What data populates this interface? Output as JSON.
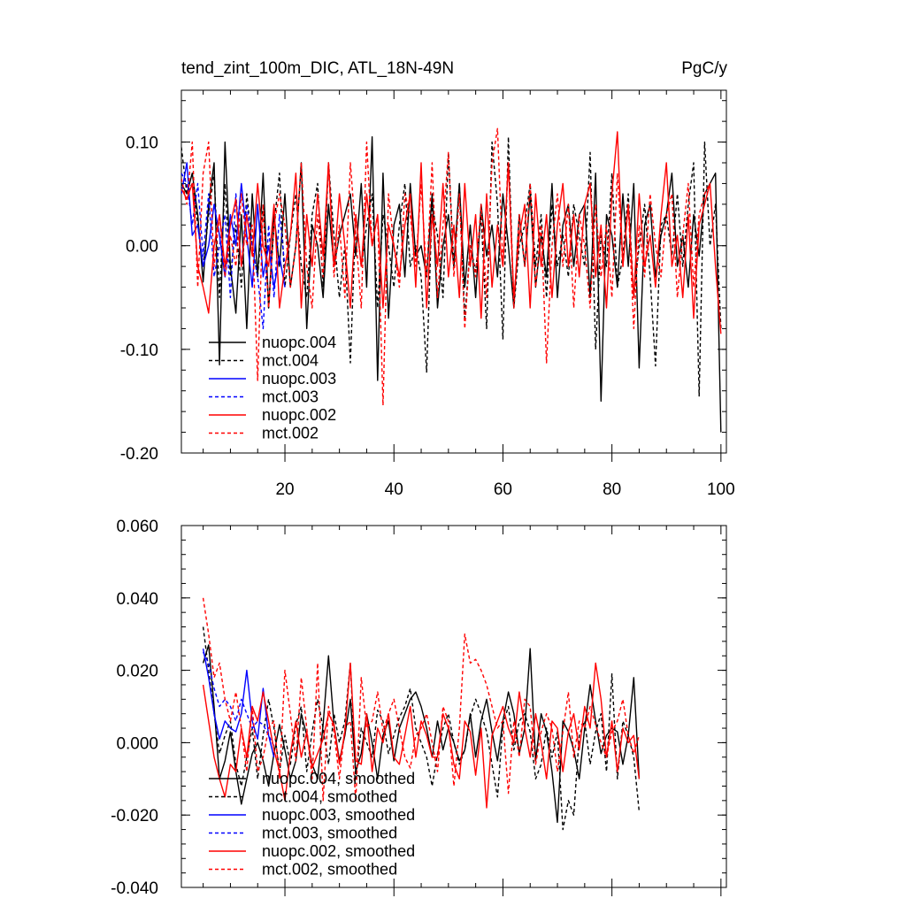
{
  "figure": {
    "left_title": "tend_zint_100m_DIC, ATL_18N-49N",
    "right_title": "PgC/y"
  },
  "chart_data": [
    {
      "type": "line",
      "name": "annual",
      "xlim": [
        1,
        101
      ],
      "ylim": [
        -0.2,
        0.15
      ],
      "xticks": [
        20,
        40,
        60,
        80,
        100
      ],
      "xtick_labels": [
        "20",
        "40",
        "60",
        "80",
        "100"
      ],
      "yticks": [
        -0.2,
        -0.1,
        0.0,
        0.1
      ],
      "ytick_labels": [
        "-0.20",
        "-0.10",
        "0.00",
        "0.10"
      ],
      "legend_position": "bottom-left",
      "series": [
        {
          "name": "nuopc.004",
          "color": "#000000",
          "dash": "solid",
          "values": [
            0.06,
            0.05,
            0.07,
            0.03,
            -0.035,
            0.04,
            0.08,
            -0.115,
            0.1,
            -0.02,
            -0.065,
            0.03,
            -0.08,
            0.05,
            -0.03,
            0.07,
            -0.06,
            0.03,
            -0.02,
            0.05,
            -0.04,
            0.0,
            0.08,
            -0.08,
            0.02,
            0.0,
            -0.05,
            0.04,
            -0.02,
            0.01,
            0.03,
            0.05,
            -0.01,
            0.06,
            -0.04,
            0.105,
            -0.13,
            0.07,
            -0.07,
            0.02,
            0.04,
            -0.03,
            0.06,
            -0.01,
            0.0,
            -0.03,
            0.05,
            -0.06,
            0.0,
            0.03,
            -0.02,
            0.06,
            -0.04,
            0.02,
            -0.05,
            0.04,
            -0.01,
            0.02,
            -0.03,
            0.05,
            0.0,
            -0.06,
            0.03,
            -0.02,
            0.05,
            -0.04,
            0.01,
            -0.03,
            0.06,
            -0.05,
            0.02,
            0.04,
            -0.02,
            0.03,
            0.04,
            -0.05,
            0.07,
            -0.15,
            0.03,
            0.01,
            -0.04,
            0.05,
            -0.02,
            0.06,
            -0.118,
            0.02,
            0.04,
            -0.03,
            0.01,
            0.03,
            0.07,
            -0.02,
            0.01,
            -0.04,
            0.03,
            -0.01,
            0.05,
            0.06,
            0.07,
            -0.18
          ]
        },
        {
          "name": "mct.004",
          "color": "#000000",
          "dash": "dashed",
          "values": [
            0.095,
            0.05,
            0.06,
            0.02,
            -0.02,
            0.03,
            0.07,
            -0.05,
            0.06,
            -0.03,
            0.02,
            -0.04,
            0.05,
            0.0,
            -0.03,
            0.04,
            -0.06,
            0.02,
            0.07,
            -0.04,
            0.01,
            0.05,
            -0.02,
            -0.05,
            0.03,
            0.06,
            -0.04,
            0.08,
            0.01,
            -0.05,
            0.0,
            -0.113,
            0.03,
            -0.02,
            0.02,
            0.05,
            -0.06,
            0.03,
            0.0,
            -0.04,
            0.02,
            0.06,
            -0.02,
            0.0,
            -0.03,
            -0.122,
            0.04,
            0.01,
            -0.05,
            0.09,
            -0.02,
            0.06,
            -0.07,
            0.0,
            -0.025,
            0.03,
            -0.08,
            0.1,
            0.04,
            -0.09,
            0.105,
            -0.06,
            0.0,
            0.02,
            0.06,
            -0.02,
            0.03,
            -0.05,
            0.04,
            -0.02,
            0.01,
            -0.03,
            0.04,
            0.01,
            -0.02,
            0.09,
            -0.1,
            0.01,
            -0.02,
            0.07,
            -0.04,
            -0.01,
            0.05,
            -0.05,
            0.0,
            0.04,
            -0.03,
            -0.116,
            0.02,
            0.03,
            -0.01,
            0.05,
            -0.02,
            0.04,
            0.08,
            -0.145,
            0.1,
            0.0,
            0.04,
            -0.08
          ]
        },
        {
          "name": "nuopc.003",
          "color": "#0000ff",
          "dash": "solid",
          "values": [
            0.05,
            0.08,
            0.01,
            0.02,
            -0.02,
            0.0,
            0.04,
            0.01,
            -0.03,
            0.03,
            0.0,
            0.06,
            0.01,
            -0.04,
            0.04,
            -0.03,
            0.0,
            -0.04,
            -0.01,
            -0.04
          ]
        },
        {
          "name": "mct.003",
          "color": "#0000ff",
          "dash": "dashed",
          "values": [
            0.07,
            0.06,
            0.02,
            0.06,
            -0.01,
            0.05,
            -0.03,
            0.0,
            0.03,
            -0.05,
            0.05,
            -0.02,
            0.04,
            0.0,
            -0.03,
            -0.08,
            0.02,
            -0.05,
            0.03,
            -0.02
          ]
        },
        {
          "name": "nuopc.002",
          "color": "#ff0000",
          "dash": "solid",
          "values": [
            0.055,
            0.045,
            0.06,
            -0.02,
            -0.04,
            -0.065,
            0.0,
            0.03,
            -0.02,
            0.02,
            0.045,
            -0.02,
            0.03,
            -0.01,
            0.06,
            0.0,
            -0.02,
            0.04,
            -0.06,
            -0.02,
            0.01,
            0.07,
            -0.06,
            0.03,
            -0.02,
            0.05,
            -0.01,
            0.08,
            -0.02,
            0.05,
            0.0,
            -0.06,
            0.03,
            -0.02,
            0.05,
            0.0,
            0.03,
            -0.06,
            0.02,
            0.0,
            -0.03,
            0.02,
            0.05,
            -0.04,
            0.08,
            -0.06,
            0.03,
            -0.02,
            0.06,
            -0.03,
            0.02,
            -0.05,
            0.06,
            -0.02,
            0.03,
            -0.07,
            0.05,
            -0.04,
            0.02,
            -0.02,
            0.08,
            -0.05,
            0.01,
            0.04,
            -0.06,
            0.05,
            -0.02,
            0.03,
            -0.05,
            0.02,
            0.06,
            -0.02,
            0.03,
            -0.03,
            0.04,
            0.06,
            -0.03,
            0.02,
            -0.06,
            0.05,
            0.11,
            -0.02,
            0.04,
            -0.05,
            0.05,
            -0.02,
            0.01,
            -0.04,
            0.03,
            0.08,
            -0.02,
            0.01,
            -0.05,
            0.03,
            -0.07,
            0.02,
            0.04,
            0.06,
            -0.02,
            -0.085
          ]
        },
        {
          "name": "mct.002",
          "color": "#ff0000",
          "dash": "dashed",
          "values": [
            0.065,
            0.04,
            0.1,
            -0.04,
            0.07,
            0.1,
            -0.02,
            0.03,
            -0.03,
            0.01,
            -0.02,
            0.05,
            0.0,
            0.02,
            -0.13,
            0.04,
            -0.06,
            0.02,
            0.05,
            0.02,
            -0.04,
            0.0,
            0.08,
            -0.02,
            -0.06,
            0.03,
            -0.03,
            0.08,
            -0.03,
            0.02,
            -0.05,
            0.08,
            0.01,
            -0.06,
            0.1,
            0.0,
            0.03,
            -0.154,
            0.05,
            0.0,
            -0.04,
            0.05,
            0.03,
            -0.02,
            0.06,
            -0.03,
            0.08,
            -0.05,
            0.02,
            0.09,
            -0.03,
            0.05,
            -0.08,
            0.0,
            -0.03,
            0.04,
            -0.05,
            0.08,
            0.113,
            -0.02,
            0.08,
            -0.06,
            0.03,
            -0.02,
            0.06,
            -0.04,
            0.02,
            -0.113,
            0.0,
            0.05,
            -0.02,
            0.04,
            -0.06,
            0.03,
            0.0,
            -0.06,
            0.04,
            -0.03,
            0.02,
            -0.05,
            0.07,
            -0.02,
            0.04,
            -0.08,
            0.02,
            -0.03,
            0.05,
            0.0,
            -0.03,
            0.03,
            0.05,
            -0.05,
            0.01,
            0.06,
            -0.04,
            0.03,
            0.05,
            0.06
          ]
        }
      ]
    },
    {
      "type": "line",
      "name": "smoothed",
      "xlim": [
        1,
        101
      ],
      "ylim": [
        -0.04,
        0.06
      ],
      "xticks": [
        20,
        40,
        60,
        80,
        100
      ],
      "xtick_labels": [
        "",
        "",
        "",
        "",
        ""
      ],
      "yticks": [
        -0.04,
        -0.02,
        0.0,
        0.02,
        0.04,
        0.06
      ],
      "ytick_labels": [
        "-0.040",
        "-0.020",
        "0.000",
        "0.020",
        "0.040",
        "0.060"
      ],
      "legend_position": "bottom-left",
      "series": [
        {
          "name": "nuopc.004, smoothed",
          "color": "#000000",
          "dash": "solid",
          "x_start": 5,
          "values": [
            0.022,
            0.027,
            0.01,
            -0.01,
            -0.005,
            0.003,
            -0.008,
            -0.017,
            -0.01,
            -0.003,
            0.0,
            -0.005,
            -0.012,
            -0.003,
            0.005,
            -0.002,
            -0.01,
            -0.005,
            0.008,
            0.002,
            -0.006,
            -0.01,
            0.005,
            0.024,
            0.005,
            -0.005,
            0.002,
            0.012,
            -0.008,
            -0.003,
            0.008,
            0.0,
            -0.01,
            0.002,
            0.006,
            -0.005,
            0.004,
            0.008,
            0.012,
            0.014,
            0.01,
            0.004,
            -0.004,
            0.006,
            -0.002,
            0.004,
            0.0,
            -0.005,
            -0.002,
            0.008,
            -0.004,
            0.006,
            0.012,
            0.003,
            -0.005,
            0.006,
            0.014,
            0.008,
            -0.003,
            0.004,
            0.026,
            -0.005,
            0.008,
            0.003,
            -0.008,
            -0.022,
            0.006,
            0.003,
            -0.002,
            -0.01,
            0.004,
            0.016,
            0.006,
            -0.003,
            0.002,
            0.004,
            0.003,
            -0.006,
            0.002,
            0.018,
            -0.01
          ]
        },
        {
          "name": "mct.004, smoothed",
          "color": "#000000",
          "dash": "dashed",
          "x_start": 5,
          "values": [
            0.032,
            0.02,
            0.008,
            -0.003,
            0.002,
            0.006,
            -0.006,
            -0.012,
            -0.004,
            0.004,
            -0.01,
            0.002,
            0.012,
            0.004,
            -0.008,
            0.002,
            -0.006,
            0.005,
            0.01,
            -0.008,
            0.003,
            0.012,
            0.004,
            -0.006,
            0.008,
            0.0,
            0.006,
            0.022,
            -0.01,
            0.004,
            0.0,
            -0.004,
            0.009,
            0.006,
            -0.003,
            0.002,
            0.007,
            0.01,
            0.015,
            0.004,
            0.0,
            -0.004,
            -0.012,
            -0.003,
            0.004,
            0.008,
            0.0,
            -0.006,
            -0.002,
            0.007,
            0.012,
            0.008,
            0.003,
            -0.006,
            -0.015,
            0.005,
            0.01,
            -0.002,
            0.006,
            0.008,
            0.003,
            -0.01,
            -0.006,
            0.004,
            -0.004,
            0.003,
            -0.024,
            -0.016,
            -0.02,
            0.002,
            0.006,
            -0.006,
            0.003,
            0.008,
            -0.008,
            0.019,
            -0.01,
            0.006,
            0.002,
            -0.004,
            -0.019
          ]
        },
        {
          "name": "nuopc.003, smoothed",
          "color": "#0000ff",
          "dash": "solid",
          "x_start": 5,
          "values": [
            0.026,
            0.018,
            0.008,
            0.001,
            0.006,
            0.004,
            0.003,
            0.008,
            0.02,
            0.006,
            0.001,
            0.015,
            0.002,
            -0.004
          ]
        },
        {
          "name": "mct.003, smoothed",
          "color": "#0000ff",
          "dash": "dashed",
          "x_start": 5,
          "values": [
            0.025,
            0.022,
            0.015,
            0.01,
            0.012,
            0.01,
            0.006,
            0.012,
            0.008,
            0.004,
            0.006,
            0.005,
            0.002,
            -0.001
          ]
        },
        {
          "name": "nuopc.002, smoothed",
          "color": "#ff0000",
          "dash": "solid",
          "x_start": 5,
          "values": [
            0.016,
            0.006,
            -0.004,
            -0.01,
            -0.015,
            -0.006,
            -0.008,
            0.004,
            -0.004,
            0.01,
            0.006,
            0.014,
            0.006,
            -0.002,
            -0.008,
            -0.016,
            -0.003,
            0.006,
            -0.004,
            0.003,
            -0.007,
            -0.003,
            0.001,
            0.008,
            0.005,
            -0.006,
            0.003,
            0.022,
            -0.005,
            -0.006,
            0.008,
            -0.008,
            0.004,
            0.0,
            0.008,
            -0.004,
            -0.006,
            0.002,
            0.01,
            -0.004,
            0.006,
            0.002,
            -0.004,
            -0.004,
            0.008,
            0.004,
            -0.006,
            -0.01,
            0.006,
            0.003,
            -0.009,
            0.004,
            -0.018,
            0.002,
            0.006,
            0.01,
            0.004,
            0.0,
            0.014,
            0.004,
            -0.004,
            0.008,
            0.0,
            -0.01,
            0.006,
            0.004,
            -0.008,
            0.003,
            0.008,
            -0.002,
            0.01,
            0.004,
            0.022,
            0.012,
            -0.004,
            0.006,
            -0.008,
            0.004,
            0.0,
            0.002,
            -0.01
          ]
        },
        {
          "name": "mct.002, smoothed",
          "color": "#ff0000",
          "dash": "dashed",
          "x_start": 5,
          "values": [
            0.04,
            0.03,
            0.018,
            0.022,
            0.012,
            0.006,
            0.014,
            0.004,
            -0.008,
            0.01,
            -0.008,
            -0.004,
            0.004,
            0.006,
            -0.01,
            0.02,
            0.008,
            -0.005,
            0.018,
            0.004,
            -0.01,
            0.022,
            -0.016,
            0.01,
            0.003,
            -0.01,
            0.004,
            0.006,
            -0.016,
            0.018,
            0.004,
            0.006,
            0.014,
            0.003,
            0.008,
            0.012,
            0.004,
            -0.004,
            -0.007,
            0.002,
            0.004,
            0.008,
            0.0,
            -0.008,
            0.01,
            0.006,
            -0.012,
            0.004,
            0.03,
            0.022,
            0.023,
            0.02,
            0.016,
            0.01,
            0.004,
            0.006,
            -0.014,
            0.006,
            -0.004,
            0.012,
            0.01,
            -0.006,
            0.003,
            0.008,
            0.004,
            -0.008,
            0.003,
            0.014,
            -0.004,
            0.006,
            0.004,
            0.01,
            0.005,
            0.0,
            -0.004,
            0.003,
            0.006,
            0.012,
            0.002,
            -0.003,
            0.002
          ]
        }
      ]
    }
  ]
}
